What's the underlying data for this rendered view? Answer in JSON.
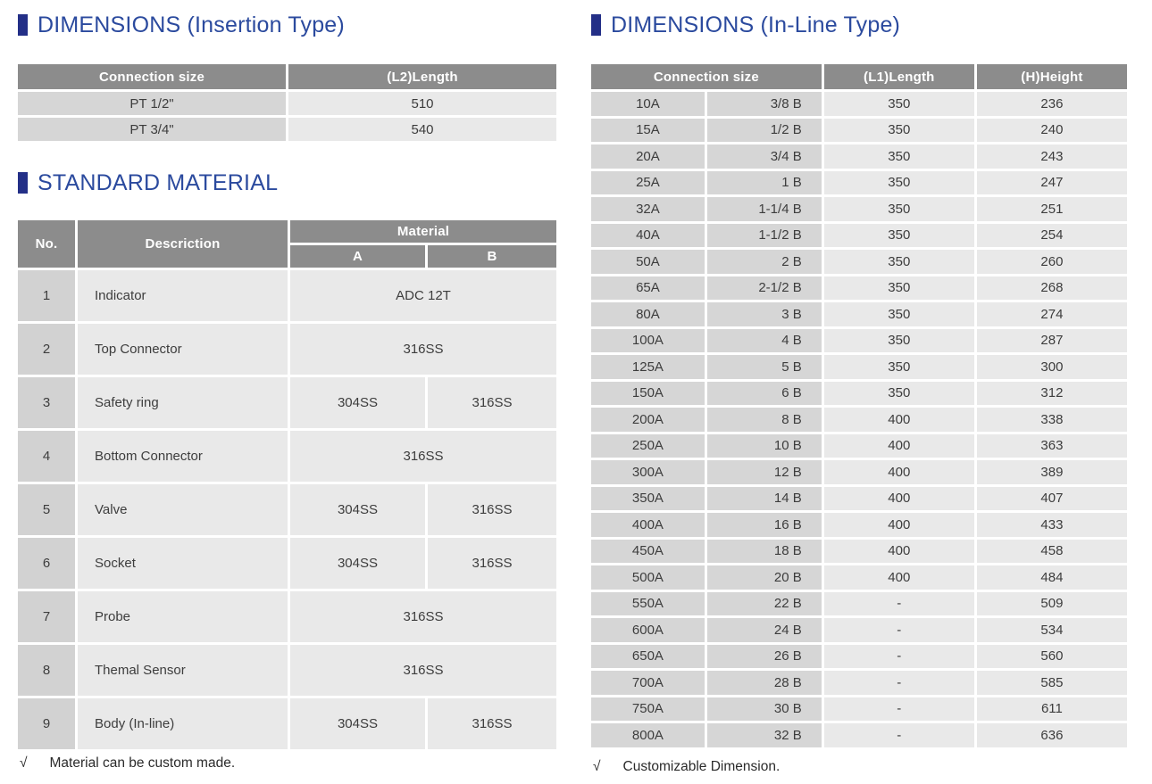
{
  "colors": {
    "title_blue": "#2b4a9e",
    "bullet_navy": "#232f87",
    "header_gray": "#8c8c8c",
    "cell_dark_gray": "#d6d6d6",
    "cell_light_gray": "#e9e9e9"
  },
  "insertion": {
    "title": "DIMENSIONS (Insertion Type)",
    "col_connection": "Connection size",
    "col_length": "(L2)Length",
    "rows": [
      [
        "PT 1/2\"",
        "510"
      ],
      [
        "PT 3/4\"",
        "540"
      ]
    ]
  },
  "material": {
    "title": "STANDARD MATERIAL",
    "col_no": "No.",
    "col_desc": "Descriction",
    "col_material": "Material",
    "col_a": "A",
    "col_b": "B",
    "rows": [
      {
        "no": "1",
        "desc": "Indicator",
        "a": "ADC 12T"
      },
      {
        "no": "2",
        "desc": "Top Connector",
        "a": "316SS"
      },
      {
        "no": "3",
        "desc": "Safety ring",
        "a": "304SS",
        "b": "316SS"
      },
      {
        "no": "4",
        "desc": "Bottom Connector",
        "a": "316SS"
      },
      {
        "no": "5",
        "desc": "Valve",
        "a": "304SS",
        "b": "316SS"
      },
      {
        "no": "6",
        "desc": "Socket",
        "a": "304SS",
        "b": "316SS"
      },
      {
        "no": "7",
        "desc": "Probe",
        "a": "316SS"
      },
      {
        "no": "8",
        "desc": "Themal Sensor",
        "a": "316SS"
      },
      {
        "no": "9",
        "desc": "Body (In-line)",
        "a": "304SS",
        "b": "316SS"
      }
    ],
    "footnote_mark": "√",
    "footnote_text": "Material can be custom made."
  },
  "inline": {
    "title": "DIMENSIONS (In-Line Type)",
    "col_connection": "Connection size",
    "col_length": "(L1)Length",
    "col_height": "(H)Height",
    "rows": [
      [
        "10A",
        "3/8 B",
        "350",
        "236"
      ],
      [
        "15A",
        "1/2 B",
        "350",
        "240"
      ],
      [
        "20A",
        "3/4 B",
        "350",
        "243"
      ],
      [
        "25A",
        "1 B",
        "350",
        "247"
      ],
      [
        "32A",
        "1-1/4 B",
        "350",
        "251"
      ],
      [
        "40A",
        "1-1/2 B",
        "350",
        "254"
      ],
      [
        "50A",
        "2 B",
        "350",
        "260"
      ],
      [
        "65A",
        "2-1/2 B",
        "350",
        "268"
      ],
      [
        "80A",
        "3 B",
        "350",
        "274"
      ],
      [
        "100A",
        "4 B",
        "350",
        "287"
      ],
      [
        "125A",
        "5 B",
        "350",
        "300"
      ],
      [
        "150A",
        "6 B",
        "350",
        "312"
      ],
      [
        "200A",
        "8 B",
        "400",
        "338"
      ],
      [
        "250A",
        "10 B",
        "400",
        "363"
      ],
      [
        "300A",
        "12 B",
        "400",
        "389"
      ],
      [
        "350A",
        "14 B",
        "400",
        "407"
      ],
      [
        "400A",
        "16 B",
        "400",
        "433"
      ],
      [
        "450A",
        "18 B",
        "400",
        "458"
      ],
      [
        "500A",
        "20 B",
        "400",
        "484"
      ],
      [
        "550A",
        "22 B",
        "-",
        "509"
      ],
      [
        "600A",
        "24 B",
        "-",
        "534"
      ],
      [
        "650A",
        "26 B",
        "-",
        "560"
      ],
      [
        "700A",
        "28 B",
        "-",
        "585"
      ],
      [
        "750A",
        "30 B",
        "-",
        "611"
      ],
      [
        "800A",
        "32 B",
        "-",
        "636"
      ]
    ],
    "footnote_mark": "√",
    "footnote_text": "Customizable Dimension."
  }
}
